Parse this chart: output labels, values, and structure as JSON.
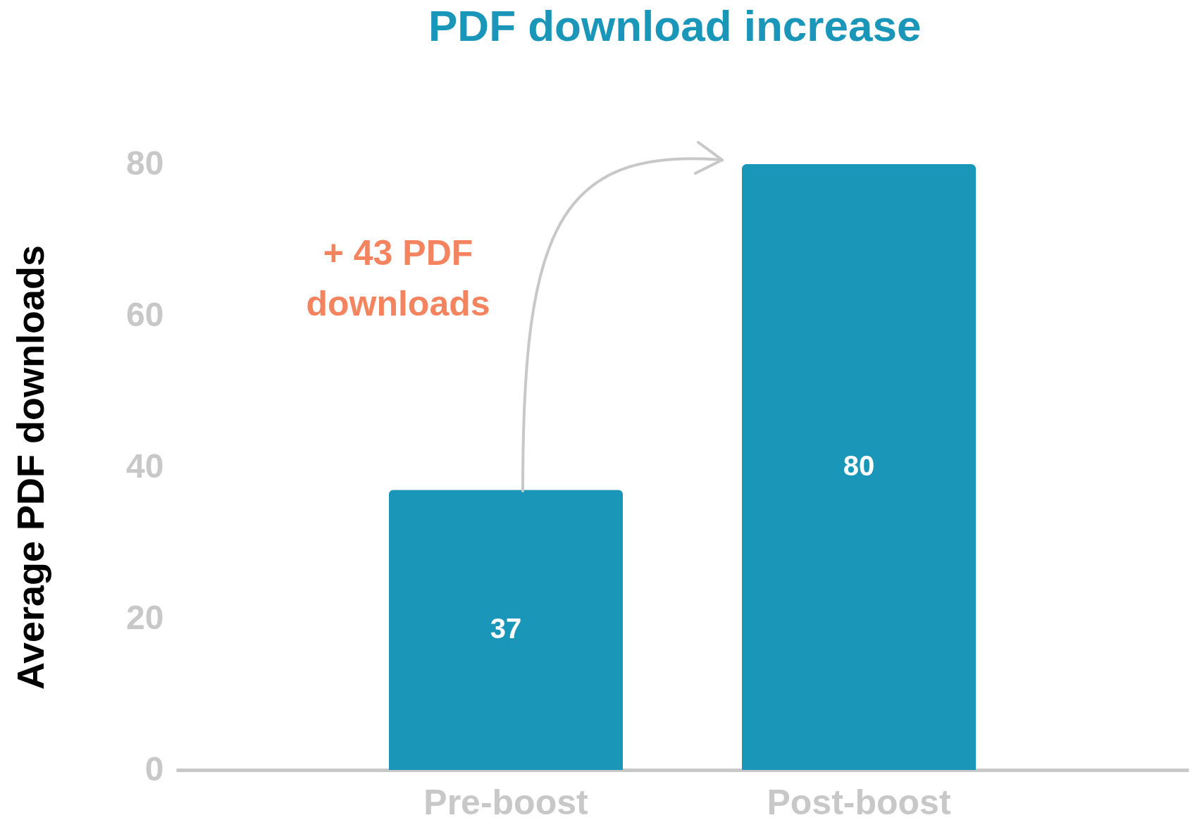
{
  "chart_data": {
    "type": "bar",
    "title": "PDF download increase",
    "ylabel": "Average PDF downloads",
    "categories": [
      "Pre-boost",
      "Post-boost"
    ],
    "values": [
      37,
      80
    ],
    "color": "#1a96b8",
    "ylim": [
      0,
      80
    ],
    "yticks": [
      0,
      20,
      40,
      60,
      80
    ],
    "grid": false,
    "data_labels": true,
    "annotations": [
      "+ 43 PDF downloads"
    ]
  }
}
